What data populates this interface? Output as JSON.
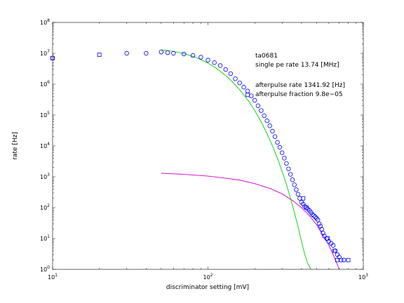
{
  "chart_data": {
    "type": "scatter",
    "xlabel": "discriminator setting [mV]",
    "ylabel": "rate [Hz]",
    "xscale": "log",
    "yscale": "log",
    "xlim": [
      10,
      1000
    ],
    "ylim": [
      1,
      100000000
    ],
    "x_ticks": [
      {
        "base": "10",
        "exp": "1"
      },
      {
        "base": "10",
        "exp": "2"
      },
      {
        "base": "10",
        "exp": "3"
      }
    ],
    "y_ticks": [
      {
        "base": "10",
        "exp": "0"
      },
      {
        "base": "10",
        "exp": "1"
      },
      {
        "base": "10",
        "exp": "2"
      },
      {
        "base": "10",
        "exp": "3"
      },
      {
        "base": "10",
        "exp": "4"
      },
      {
        "base": "10",
        "exp": "5"
      },
      {
        "base": "10",
        "exp": "6"
      },
      {
        "base": "10",
        "exp": "7"
      },
      {
        "base": "10",
        "exp": "8"
      }
    ],
    "annotations": [
      "ta0681",
      "single pe rate 13.74 [MHz]",
      "afterpulse rate 1341.92 [Hz]",
      "afterpulse fraction 9.8e−05"
    ],
    "colors": {
      "markers": "#0000ff",
      "single_pe_fit": "#00cc00",
      "afterpulse_fit": "#cc00cc",
      "axes": "#000000"
    },
    "series": [
      {
        "marker": "circle",
        "points": [
          [
            10,
            7000000
          ],
          [
            30,
            10000000
          ],
          [
            40,
            10000000
          ],
          [
            50,
            11000000
          ],
          [
            55,
            10500000
          ],
          [
            60,
            10000000
          ],
          [
            70,
            9500000
          ],
          [
            80,
            8500000
          ],
          [
            90,
            7500000
          ],
          [
            100,
            6000000
          ],
          [
            110,
            5000000
          ],
          [
            120,
            4000000
          ],
          [
            130,
            3000000
          ],
          [
            140,
            2200000
          ],
          [
            150,
            1500000
          ],
          [
            160,
            1100000
          ],
          [
            170,
            800000
          ],
          [
            180,
            600000
          ],
          [
            190,
            420000
          ],
          [
            200,
            300000
          ],
          [
            210,
            200000
          ],
          [
            220,
            140000
          ],
          [
            230,
            95000
          ],
          [
            240,
            65000
          ],
          [
            250,
            45000
          ],
          [
            260,
            30000
          ],
          [
            270,
            20000
          ],
          [
            280,
            13000
          ],
          [
            290,
            9000
          ],
          [
            300,
            6000
          ],
          [
            310,
            4000
          ],
          [
            320,
            2700
          ],
          [
            330,
            1800
          ],
          [
            340,
            1200
          ],
          [
            350,
            800
          ],
          [
            360,
            550
          ],
          [
            370,
            380
          ],
          [
            380,
            270
          ],
          [
            390,
            200
          ],
          [
            400,
            150
          ],
          [
            410,
            130
          ],
          [
            420,
            110
          ],
          [
            430,
            100
          ],
          [
            440,
            90
          ],
          [
            450,
            80
          ],
          [
            460,
            70
          ],
          [
            470,
            60
          ],
          [
            480,
            55
          ],
          [
            490,
            50
          ],
          [
            500,
            45
          ],
          [
            510,
            40
          ],
          [
            520,
            30
          ],
          [
            530,
            25
          ],
          [
            540,
            20
          ],
          [
            550,
            15
          ],
          [
            560,
            12
          ],
          [
            580,
            10
          ],
          [
            600,
            8
          ],
          [
            620,
            7
          ],
          [
            640,
            6
          ],
          [
            660,
            4
          ],
          [
            680,
            3
          ],
          [
            700,
            2.5
          ],
          [
            720,
            2
          ],
          [
            750,
            2
          ]
        ]
      },
      {
        "marker": "square",
        "points": [
          [
            10,
            7000000
          ],
          [
            20,
            9000000
          ],
          [
            180,
            450000
          ],
          [
            410,
            200
          ],
          [
            430,
            100
          ],
          [
            590,
            10
          ],
          [
            650,
            4
          ],
          [
            680,
            2
          ],
          [
            800,
            2
          ]
        ]
      }
    ],
    "fits": [
      {
        "name_key": "single_pe_fit",
        "points": [
          [
            50,
            13000000
          ],
          [
            60,
            11500000
          ],
          [
            70,
            9800000
          ],
          [
            80,
            8000000
          ],
          [
            90,
            6300000
          ],
          [
            100,
            4800000
          ],
          [
            110,
            3600000
          ],
          [
            120,
            2600000
          ],
          [
            130,
            1900000
          ],
          [
            140,
            1350000
          ],
          [
            150,
            950000
          ],
          [
            160,
            660000
          ],
          [
            170,
            450000
          ],
          [
            180,
            310000
          ],
          [
            190,
            210000
          ],
          [
            200,
            140000
          ],
          [
            220,
            60000
          ],
          [
            240,
            25000
          ],
          [
            260,
            10000
          ],
          [
            280,
            4000
          ],
          [
            300,
            1500
          ],
          [
            320,
            560
          ],
          [
            340,
            200
          ],
          [
            360,
            70
          ],
          [
            380,
            24
          ],
          [
            400,
            8
          ],
          [
            420,
            3
          ],
          [
            440,
            1.5
          ],
          [
            460,
            1
          ]
        ]
      },
      {
        "name_key": "afterpulse_fit",
        "points": [
          [
            50,
            1300
          ],
          [
            70,
            1200
          ],
          [
            100,
            1050
          ],
          [
            130,
            900
          ],
          [
            160,
            780
          ],
          [
            200,
            600
          ],
          [
            250,
            420
          ],
          [
            300,
            280
          ],
          [
            350,
            170
          ],
          [
            400,
            100
          ],
          [
            450,
            55
          ],
          [
            500,
            28
          ],
          [
            550,
            13
          ],
          [
            600,
            6
          ],
          [
            650,
            2.5
          ],
          [
            700,
            1
          ]
        ]
      }
    ]
  }
}
